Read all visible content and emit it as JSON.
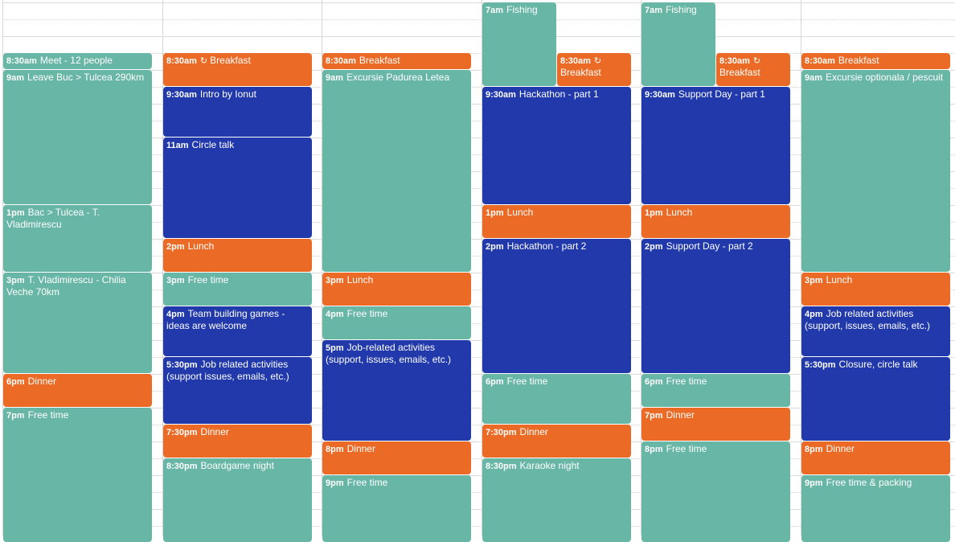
{
  "colors": {
    "teal": "#68b6a5",
    "orange": "#eb6b26",
    "blue": "#2139ab"
  },
  "view": {
    "start_hour": 7,
    "end_hour": 23
  },
  "recurring_icon": "↻",
  "days": [
    {
      "events": [
        {
          "time": "8:30am",
          "title": "Meet - 12 people",
          "start": 8.5,
          "end": 9,
          "color": "teal"
        },
        {
          "time": "9am",
          "title": "Leave Buc > Tulcea 290km",
          "start": 9,
          "end": 13,
          "color": "teal"
        },
        {
          "time": "1pm",
          "title": "Bac > Tulcea - T. Vladimirescu",
          "start": 13,
          "end": 15,
          "color": "teal"
        },
        {
          "time": "3pm",
          "title": "T. Vladimirescu - Chilia Veche 70km",
          "start": 15,
          "end": 18,
          "color": "teal"
        },
        {
          "time": "6pm",
          "title": "Dinner",
          "start": 18,
          "end": 19,
          "color": "orange"
        },
        {
          "time": "7pm",
          "title": "Free time",
          "start": 19,
          "end": 23,
          "color": "teal"
        }
      ]
    },
    {
      "events": [
        {
          "time": "8:30am",
          "title": "Breakfast",
          "start": 8.5,
          "end": 9.5,
          "color": "orange",
          "recurring": true
        },
        {
          "time": "9:30am",
          "title": "Intro by Ionut",
          "start": 9.5,
          "end": 11,
          "color": "blue"
        },
        {
          "time": "11am",
          "title": "Circle talk",
          "start": 11,
          "end": 14,
          "color": "blue"
        },
        {
          "time": "2pm",
          "title": "Lunch",
          "start": 14,
          "end": 15,
          "color": "orange"
        },
        {
          "time": "3pm",
          "title": "Free time",
          "start": 15,
          "end": 16,
          "color": "teal"
        },
        {
          "time": "4pm",
          "title": "Team building games - ideas are welcome",
          "start": 16,
          "end": 17.5,
          "color": "blue"
        },
        {
          "time": "5:30pm",
          "title": "Job related activities (support issues, emails, etc.)",
          "start": 17.5,
          "end": 19.5,
          "color": "blue"
        },
        {
          "time": "7:30pm",
          "title": "Dinner",
          "start": 19.5,
          "end": 20.5,
          "color": "orange"
        },
        {
          "time": "8:30pm",
          "title": "Boardgame night",
          "start": 20.5,
          "end": 23,
          "color": "teal"
        }
      ]
    },
    {
      "events": [
        {
          "time": "8:30am",
          "title": "Breakfast",
          "start": 8.5,
          "end": 9,
          "color": "orange"
        },
        {
          "time": "9am",
          "title": "Excursie Padurea Letea",
          "start": 9,
          "end": 15,
          "color": "teal"
        },
        {
          "time": "3pm",
          "title": "Lunch",
          "start": 15,
          "end": 16,
          "color": "orange"
        },
        {
          "time": "4pm",
          "title": "Free time",
          "start": 16,
          "end": 17,
          "color": "teal"
        },
        {
          "time": "5pm",
          "title": "Job-related activities (support, issues, emails, etc.)",
          "start": 17,
          "end": 20,
          "color": "blue"
        },
        {
          "time": "8pm",
          "title": "Dinner",
          "start": 20,
          "end": 21,
          "color": "orange"
        },
        {
          "time": "9pm",
          "title": "Free time",
          "start": 21,
          "end": 23,
          "color": "teal"
        }
      ]
    },
    {
      "events": [
        {
          "time": "7am",
          "title": "Fishing",
          "start": 7,
          "end": 9.5,
          "color": "teal",
          "slot": "left"
        },
        {
          "time": "8:30am",
          "title": "Breakfast",
          "start": 8.5,
          "end": 9.5,
          "color": "orange",
          "recurring": true,
          "slot": "right"
        },
        {
          "time": "9:30am",
          "title": "Hackathon - part 1",
          "start": 9.5,
          "end": 13,
          "color": "blue"
        },
        {
          "time": "1pm",
          "title": "Lunch",
          "start": 13,
          "end": 14,
          "color": "orange"
        },
        {
          "time": "2pm",
          "title": "Hackathon - part 2",
          "start": 14,
          "end": 18,
          "color": "blue"
        },
        {
          "time": "6pm",
          "title": "Free time",
          "start": 18,
          "end": 19.5,
          "color": "teal"
        },
        {
          "time": "7:30pm",
          "title": "Dinner",
          "start": 19.5,
          "end": 20.5,
          "color": "orange"
        },
        {
          "time": "8:30pm",
          "title": "Karaoke night",
          "start": 20.5,
          "end": 23,
          "color": "teal"
        }
      ]
    },
    {
      "events": [
        {
          "time": "7am",
          "title": "Fishing",
          "start": 7,
          "end": 9.5,
          "color": "teal",
          "slot": "left"
        },
        {
          "time": "8:30am",
          "title": "Breakfast",
          "start": 8.5,
          "end": 9.5,
          "color": "orange",
          "recurring": true,
          "slot": "right"
        },
        {
          "time": "9:30am",
          "title": "Support Day - part 1",
          "start": 9.5,
          "end": 13,
          "color": "blue"
        },
        {
          "time": "1pm",
          "title": "Lunch",
          "start": 13,
          "end": 14,
          "color": "orange"
        },
        {
          "time": "2pm",
          "title": "Support Day - part 2",
          "start": 14,
          "end": 18,
          "color": "blue"
        },
        {
          "time": "6pm",
          "title": "Free time",
          "start": 18,
          "end": 19,
          "color": "teal"
        },
        {
          "time": "7pm",
          "title": "Dinner",
          "start": 19,
          "end": 20,
          "color": "orange"
        },
        {
          "time": "8pm",
          "title": "Free time",
          "start": 20,
          "end": 23,
          "color": "teal"
        }
      ]
    },
    {
      "events": [
        {
          "time": "8:30am",
          "title": "Breakfast",
          "start": 8.5,
          "end": 9,
          "color": "orange"
        },
        {
          "time": "9am",
          "title": "Excursie optionala / pescuit",
          "start": 9,
          "end": 15,
          "color": "teal"
        },
        {
          "time": "3pm",
          "title": "Lunch",
          "start": 15,
          "end": 16,
          "color": "orange"
        },
        {
          "time": "4pm",
          "title": "Job related activities (support, issues, emails, etc.)",
          "start": 16,
          "end": 17.5,
          "color": "blue"
        },
        {
          "time": "5:30pm",
          "title": "Closure, circle talk",
          "start": 17.5,
          "end": 20,
          "color": "blue"
        },
        {
          "time": "8pm",
          "title": "Dinner",
          "start": 20,
          "end": 21,
          "color": "orange"
        },
        {
          "time": "9pm",
          "title": "Free time & packing",
          "start": 21,
          "end": 23,
          "color": "teal"
        }
      ]
    }
  ]
}
